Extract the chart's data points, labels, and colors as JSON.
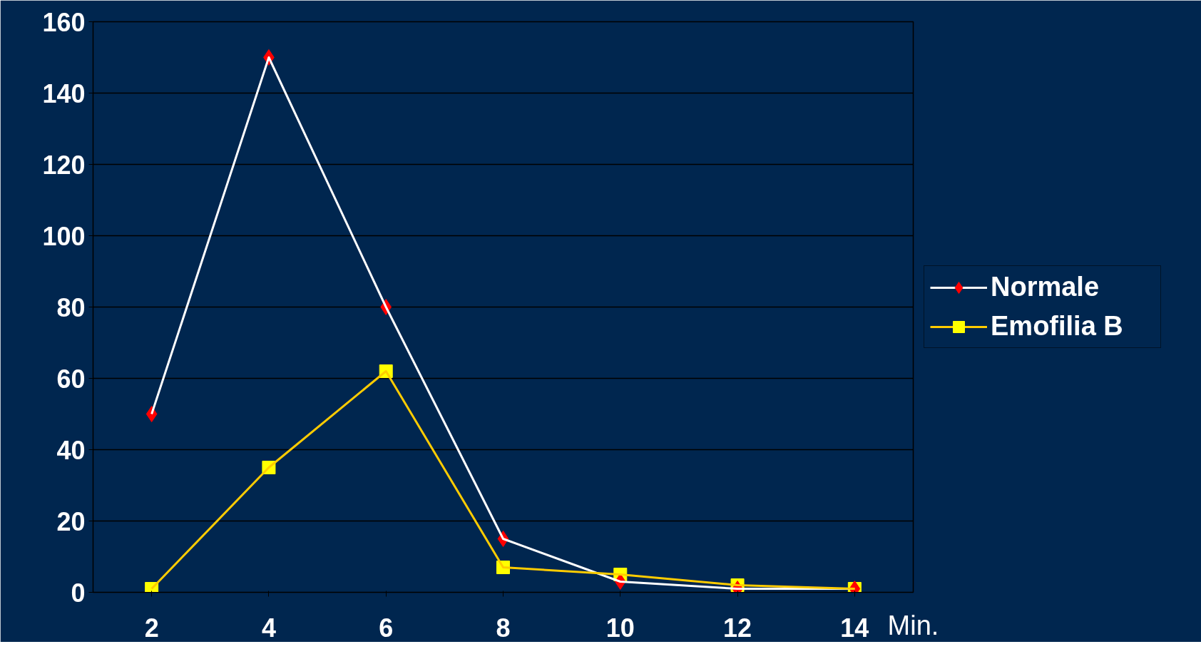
{
  "chart_data": {
    "type": "line",
    "xlabel": "Min.",
    "categories": [
      "2",
      "4",
      "6",
      "8",
      "10",
      "12",
      "14"
    ],
    "series": [
      {
        "name": "Normale",
        "color": "#ffffff",
        "colors": [
          "#ff0000",
          "#ff0000",
          "#ff0000",
          "#ff0000",
          "#ff0000",
          "#ff0000",
          "#ff0000"
        ],
        "marker": "diamond",
        "values": [
          50,
          150,
          80,
          15,
          3,
          1,
          1
        ]
      },
      {
        "name": "Emofilia B",
        "color": "#ffcc00",
        "colors": [
          "#ffff00",
          "#ffff00",
          "#ffff00",
          "#ffff00",
          "#ffff00",
          "#ffff00",
          "#ffff00"
        ],
        "marker": "square",
        "values": [
          1,
          35,
          62,
          7,
          5,
          2,
          1
        ]
      }
    ],
    "ylim": [
      0,
      160
    ],
    "yticks": [
      0,
      20,
      40,
      60,
      80,
      100,
      120,
      140,
      160
    ],
    "grid": "y",
    "legend": "right"
  }
}
